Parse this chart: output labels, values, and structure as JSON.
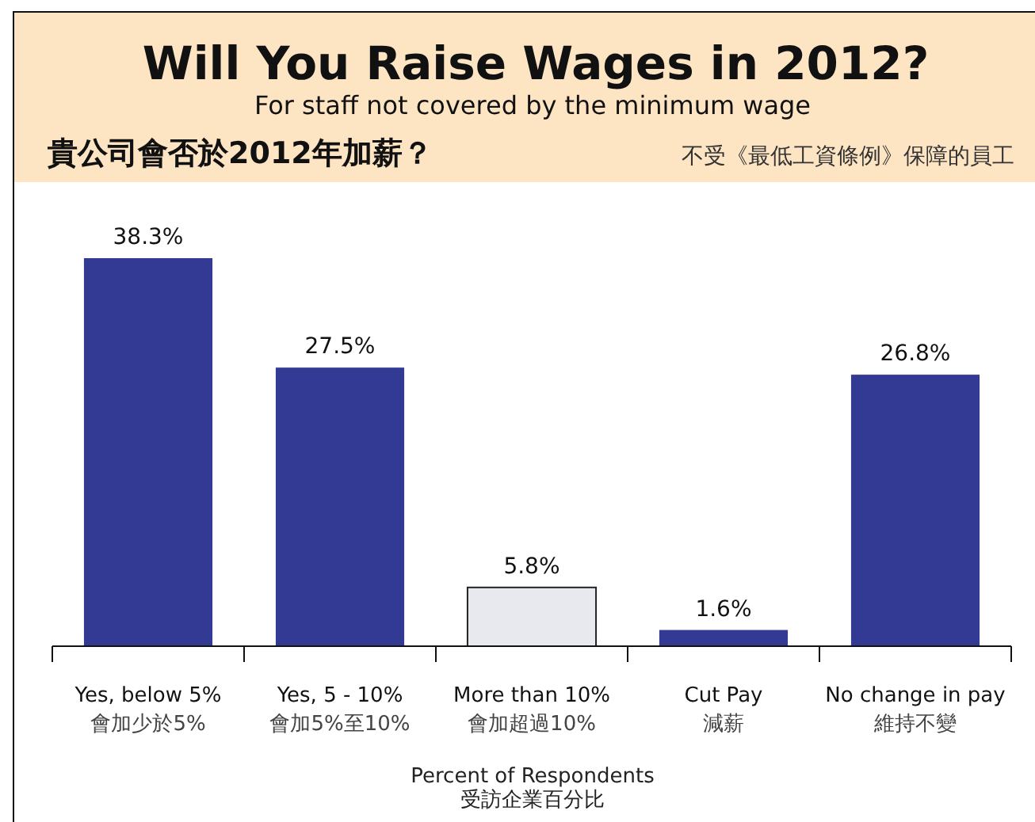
{
  "chart_data": {
    "type": "bar",
    "title": "Will You Raise Wages in 2012?",
    "subtitle": "For staff not covered by the minimum wage",
    "annotations": [
      "貴公司會否於2012年加薪？",
      "不受《最低工資條例》保障的員工"
    ],
    "categories": [
      "Yes, below 5%\n會加少於5%",
      "Yes, 5 - 10%\n會加5%至10%",
      "More than 10%\n會加超過10%",
      "Cut Pay\n減薪",
      "No change  in pay\n維持不變"
    ],
    "values": [
      38.3,
      27.5,
      5.8,
      1.6,
      26.8
    ],
    "colors": [
      "#333a94",
      "#333a94",
      "#e8e9ee",
      "#333a94",
      "#333a94"
    ],
    "value_labels": [
      "38.3%",
      "27.5%",
      "5.8%",
      "1.6%",
      "26.8%"
    ],
    "xlabel": "Percent of Respondents\n受訪企業百分比"
  }
}
